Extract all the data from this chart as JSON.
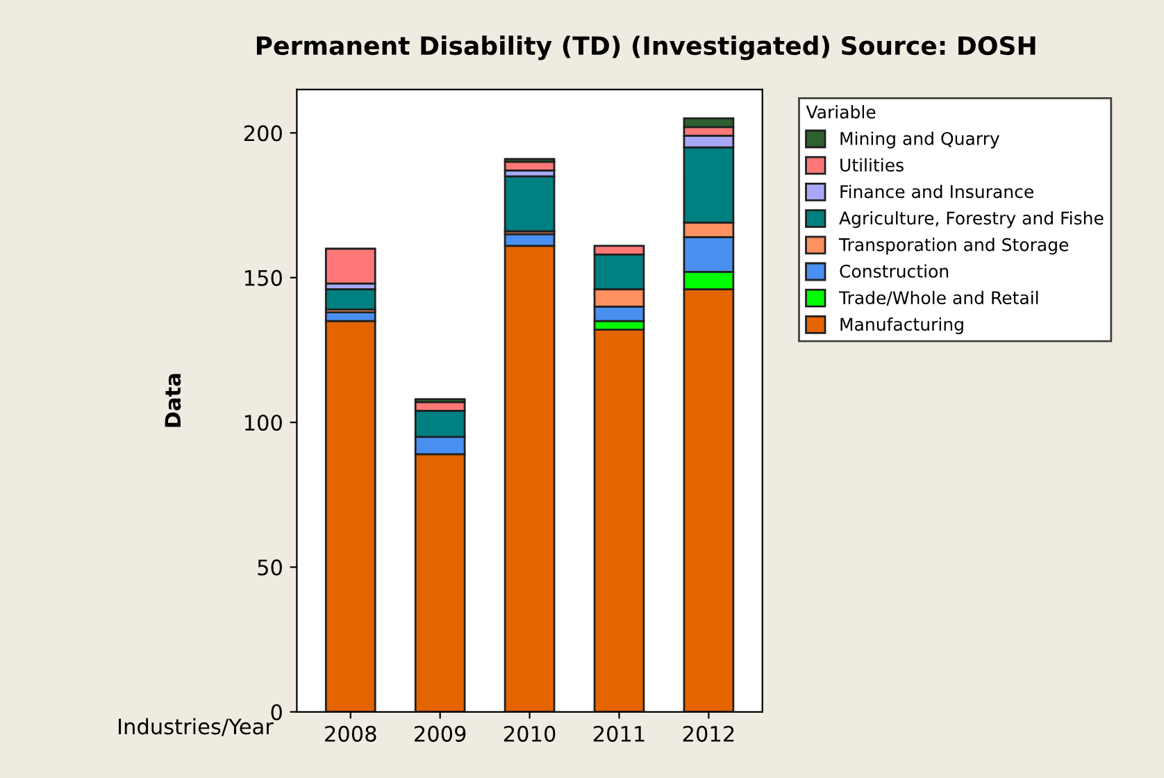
{
  "chart_data": {
    "type": "bar",
    "title": "Permanent Disability (TD) (Investigated) Source: DOSH",
    "xlabel": "Industries/Year",
    "ylabel": "Data",
    "legend_title": "Variable",
    "categories": [
      "2008",
      "2009",
      "2010",
      "2011",
      "2012"
    ],
    "stacked": true,
    "ylim": [
      0,
      215
    ],
    "yticks": [
      0,
      50,
      100,
      150,
      200
    ],
    "grid": false,
    "legend": "right",
    "series": [
      {
        "name": "Manufacturing",
        "color": "#e46400",
        "values": [
          135,
          89,
          161,
          132,
          146
        ]
      },
      {
        "name": "Trade/Whole and Retail",
        "color": "#00ff00",
        "values": [
          null,
          null,
          null,
          3,
          6
        ]
      },
      {
        "name": "Construction",
        "color": "#4a90f0",
        "values": [
          3,
          6,
          4,
          5,
          12
        ]
      },
      {
        "name": "Transporation and Storage",
        "color": "#ff9060",
        "values": [
          1,
          null,
          1,
          6,
          5
        ]
      },
      {
        "name": "Agriculture, Forestry and Fishe",
        "color": "#008080",
        "values": [
          7,
          9,
          19,
          12,
          26
        ]
      },
      {
        "name": "Finance and Insurance",
        "color": "#a8a8f8",
        "values": [
          2,
          null,
          2,
          null,
          4
        ]
      },
      {
        "name": "Utilities",
        "color": "#ff7878",
        "values": [
          12,
          3,
          3,
          3,
          3
        ]
      },
      {
        "name": "Mining and Quarry",
        "color": "#2e6030",
        "values": [
          null,
          1,
          1,
          null,
          3
        ]
      }
    ]
  }
}
